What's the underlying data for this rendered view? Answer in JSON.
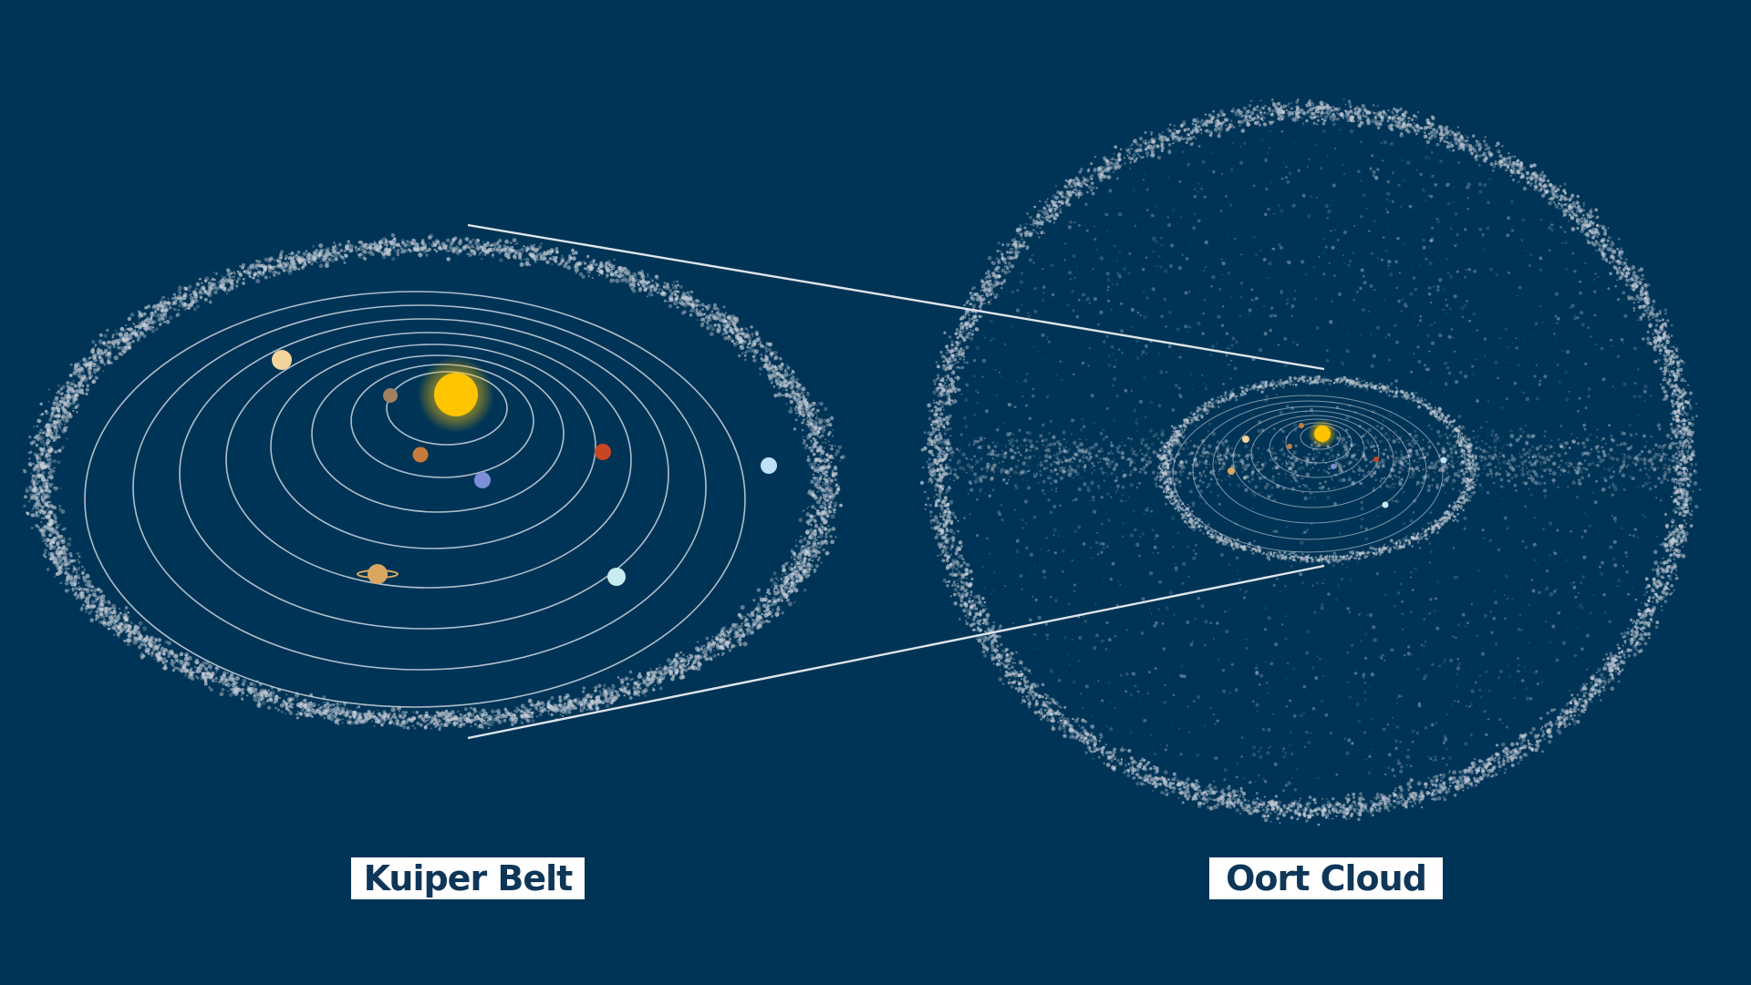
{
  "labels": {
    "kuiper": "Kuiper Belt",
    "oort": "Oort Cloud"
  },
  "colors": {
    "background": "#003456",
    "debris": "#c9cfd8",
    "orbit": "#cdd6e0",
    "label_text": "#0e3658",
    "label_box": "#ffffff",
    "sun": "#ffc400",
    "sun_glow": "#ffd84a"
  },
  "planets": [
    {
      "name": "mercury",
      "color": "#a08060"
    },
    {
      "name": "venus",
      "color": "#c67a3c"
    },
    {
      "name": "earth",
      "color": "#7d8fd6"
    },
    {
      "name": "mars",
      "color": "#c84624"
    },
    {
      "name": "jupiter",
      "color": "#f3d49a"
    },
    {
      "name": "saturn",
      "color": "#d9a860"
    },
    {
      "name": "uranus",
      "color": "#c9ecf0"
    },
    {
      "name": "neptune",
      "color": "#bfe1f7"
    }
  ]
}
